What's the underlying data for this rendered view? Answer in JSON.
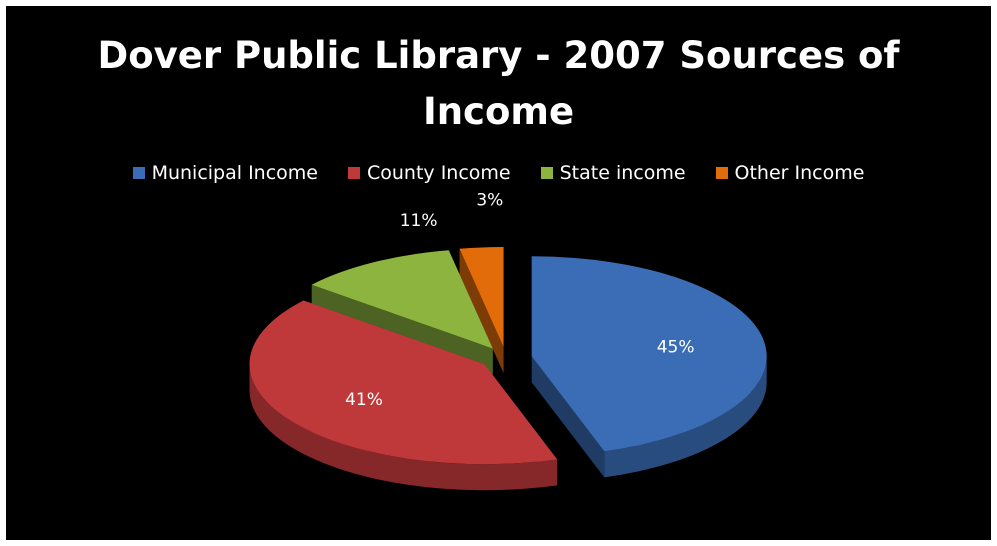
{
  "chart_data": {
    "type": "pie",
    "title": "Dover Public Library - 2007 Sources of Income",
    "title_lines": [
      "Dover Public Library - 2007 Sources of",
      "Income"
    ],
    "legend_position": "top",
    "style": "3d-exploded",
    "slices": [
      {
        "name": "Municipal Income",
        "value": 45,
        "label": "45%",
        "color": "#3a6db5"
      },
      {
        "name": "County Income",
        "value": 41,
        "label": "41%",
        "color": "#c0393a"
      },
      {
        "name": "State income",
        "value": 11,
        "label": "11%",
        "color": "#8cb43f"
      },
      {
        "name": "Other Income",
        "value": 3,
        "label": "3%",
        "color": "#e36c0a"
      }
    ]
  }
}
